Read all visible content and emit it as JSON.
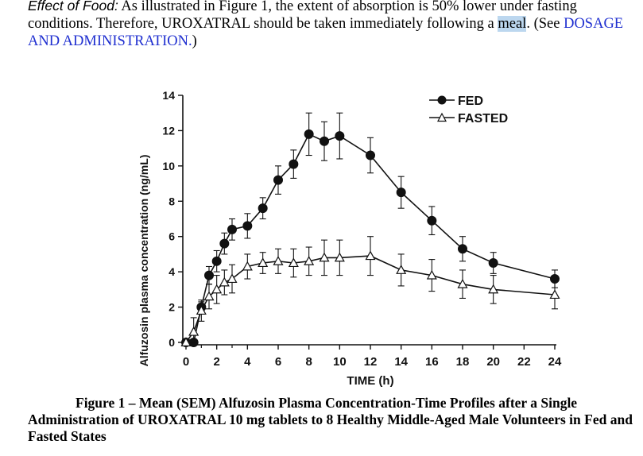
{
  "paragraph": {
    "lead": "Effect of Food",
    "lead_colon": ":",
    "text_before": "  As illustrated in Figure 1, the extent of absorption is 50% lower under fasting conditions.  Therefore, UROXATRAL should be taken immediately following a ",
    "highlight": "meal",
    "text_after": ". (See ",
    "link": "DOSAGE AND ADMINISTRATION.",
    "text_end": ")"
  },
  "colors": {
    "link": "#1f2fd0",
    "highlight": "#bcd7ef",
    "lines": "#111111"
  },
  "chart_data": {
    "type": "line",
    "xlabel": "TIME (h)",
    "ylabel": "Alfuzosin plasma concentration (ng/mL)",
    "xlim": [
      0,
      24
    ],
    "ylim": [
      0,
      14
    ],
    "xticks": [
      0,
      2,
      4,
      6,
      8,
      10,
      12,
      14,
      16,
      18,
      20,
      22,
      24
    ],
    "yticks": [
      0,
      2,
      4,
      6,
      8,
      10,
      12,
      14
    ],
    "grid": false,
    "legend_position": "top-right",
    "series": [
      {
        "name": "FED",
        "marker": "filled-circle",
        "x": [
          0,
          0.5,
          1,
          1.5,
          2,
          2.5,
          3,
          4,
          5,
          6,
          7,
          8,
          9,
          10,
          12,
          14,
          16,
          18,
          20,
          24
        ],
        "y": [
          0,
          0,
          2.0,
          3.8,
          4.6,
          5.6,
          6.4,
          6.6,
          7.6,
          9.2,
          10.1,
          11.8,
          11.4,
          11.7,
          10.6,
          8.5,
          6.9,
          5.3,
          4.5,
          3.6
        ],
        "sem": [
          0,
          0,
          0.3,
          0.5,
          0.6,
          0.6,
          0.6,
          0.7,
          0.6,
          0.8,
          0.8,
          1.2,
          1.1,
          1.3,
          1.0,
          0.9,
          0.8,
          0.7,
          0.6,
          0.5
        ]
      },
      {
        "name": "FASTED",
        "marker": "open-triangle",
        "x": [
          0,
          0.5,
          1,
          1.5,
          2,
          2.5,
          3,
          4,
          5,
          6,
          7,
          8,
          9,
          10,
          12,
          14,
          16,
          18,
          20,
          24
        ],
        "y": [
          0,
          0.6,
          1.8,
          2.6,
          3.0,
          3.4,
          3.6,
          4.3,
          4.5,
          4.6,
          4.5,
          4.6,
          4.8,
          4.8,
          4.9,
          4.1,
          3.8,
          3.3,
          3.0,
          2.7
        ],
        "sem": [
          0,
          0.8,
          0.6,
          0.7,
          0.8,
          0.7,
          0.8,
          0.7,
          0.6,
          0.7,
          0.8,
          0.8,
          1.0,
          1.0,
          1.1,
          0.9,
          0.9,
          0.8,
          0.8,
          0.8
        ]
      }
    ]
  },
  "caption": {
    "text": "Figure 1 – Mean (SEM) Alfuzosin Plasma Concentration-Time Profiles after a Single Administration of UROXATRAL 10 mg tablets to 8 Healthy Middle-Aged Male Volunteers in Fed and Fasted States"
  }
}
